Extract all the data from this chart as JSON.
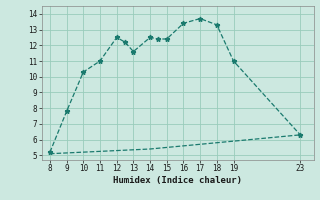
{
  "title": "",
  "xlabel": "Humidex (Indice chaleur)",
  "ylabel": "",
  "bg_color": "#cce8e0",
  "line_color": "#1a7a6e",
  "grid_color": "#99ccbb",
  "x_ticks": [
    8,
    9,
    10,
    11,
    12,
    13,
    14,
    15,
    16,
    17,
    18,
    19,
    23
  ],
  "y_ticks": [
    5,
    6,
    7,
    8,
    9,
    10,
    11,
    12,
    13,
    14
  ],
  "ylim": [
    4.7,
    14.5
  ],
  "xlim": [
    7.5,
    23.8
  ],
  "curve1_x": [
    8,
    9,
    10,
    11,
    12,
    12.5,
    13,
    14,
    14.5,
    15,
    16,
    17,
    18,
    19,
    23
  ],
  "curve1_y": [
    5.2,
    7.8,
    10.3,
    11.0,
    12.5,
    12.2,
    11.6,
    12.5,
    12.4,
    12.4,
    13.4,
    13.7,
    13.3,
    11.0,
    6.3
  ],
  "curve2_x": [
    8,
    9,
    10,
    11,
    12,
    13,
    14,
    15,
    16,
    17,
    18,
    19,
    23
  ],
  "curve2_y": [
    5.1,
    5.15,
    5.2,
    5.25,
    5.3,
    5.35,
    5.4,
    5.5,
    5.6,
    5.7,
    5.8,
    5.9,
    6.3
  ]
}
